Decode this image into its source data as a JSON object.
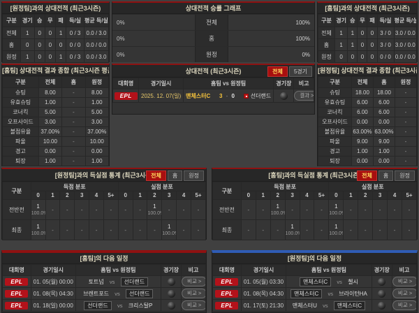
{
  "labels": {
    "vs": "vs"
  },
  "h2h_away": {
    "title": "[원정팀]과의 상대전적 (최근3시즌)",
    "headers": [
      "구분",
      "경기",
      "승",
      "무",
      "패",
      "득/실",
      "평균 득/실"
    ],
    "rows": [
      {
        "label": "전체",
        "g": "1",
        "w": "0",
        "d": "0",
        "l": "1",
        "gf": "0 / 3",
        "avg": "0.0 / 3.0"
      },
      {
        "label": "홈",
        "g": "0",
        "w": "0",
        "d": "0",
        "l": "0",
        "gf": "0 / 0",
        "avg": "0.0 / 0.0"
      },
      {
        "label": "원정",
        "g": "1",
        "w": "0",
        "d": "0",
        "l": "1",
        "gf": "0 / 3",
        "avg": "0.0 / 3.0"
      }
    ]
  },
  "winrate": {
    "title": "상대전적 승률 그래프",
    "rows": [
      {
        "label": "전체",
        "left": "0%",
        "right": "100%",
        "left_val": 0,
        "right_val": 100
      },
      {
        "label": "홈",
        "left": "0%",
        "right": "100%",
        "left_val": 0,
        "right_val": 100
      },
      {
        "label": "원정",
        "left": "0%",
        "right": "0%",
        "left_val": 0,
        "right_val": 0
      }
    ]
  },
  "h2h_home": {
    "title": "[홈팀]과의 상대전적 (최근3시즌)",
    "headers": [
      "구분",
      "경기",
      "승",
      "무",
      "패",
      "득/실",
      "평균 득/실"
    ],
    "rows": [
      {
        "label": "전체",
        "g": "1",
        "w": "1",
        "d": "0",
        "l": "0",
        "gf": "3 / 0",
        "avg": "3.0 / 0.0"
      },
      {
        "label": "홈",
        "g": "1",
        "w": "1",
        "d": "0",
        "l": "0",
        "gf": "3 / 0",
        "avg": "3.0 / 0.0"
      },
      {
        "label": "원정",
        "g": "0",
        "w": "0",
        "d": "0",
        "l": "0",
        "gf": "0 / 0",
        "avg": "0.0 / 0.0"
      }
    ]
  },
  "summary_home": {
    "title": "[홈팀] 상대전적 결과 종합 (최근3시즌 평균)",
    "headers": [
      "구분",
      "전체",
      "홈",
      "원정"
    ],
    "rows": [
      {
        "label": "슈팅",
        "all": "8.00",
        "home": "-",
        "away": "8.00"
      },
      {
        "label": "유효슈팅",
        "all": "1.00",
        "home": "-",
        "away": "1.00"
      },
      {
        "label": "코너킥",
        "all": "5.00",
        "home": "-",
        "away": "5.00"
      },
      {
        "label": "오프사이드",
        "all": "3.00",
        "home": "-",
        "away": "3.00"
      },
      {
        "label": "볼점유율",
        "all": "37.00%",
        "home": "-",
        "away": "37.00%"
      },
      {
        "label": "파울",
        "all": "10.00",
        "home": "-",
        "away": "10.00"
      },
      {
        "label": "경고",
        "all": "0.00",
        "home": "-",
        "away": "0.00"
      },
      {
        "label": "퇴장",
        "all": "1.00",
        "home": "-",
        "away": "1.00"
      }
    ]
  },
  "matches": {
    "title": "상대전적 (최근3시즌)",
    "btn_all": "전체",
    "btn_5": "5경기",
    "headers": [
      "대회명",
      "경기일시",
      "홈팀 vs 원정팀",
      "경기장",
      "비고"
    ],
    "row": {
      "league": "EPL",
      "date": "2025. 12. 07(일)",
      "home": "맨체스터C",
      "hs": "3",
      "as": "0",
      "away": "선더랜드",
      "action": "결과 >"
    }
  },
  "summary_away": {
    "title": "[원정팀] 상대전적 결과 종합 (최근3시즌 평균)",
    "headers": [
      "구분",
      "전체",
      "홈",
      "원정"
    ],
    "rows": [
      {
        "label": "슈팅",
        "all": "18.00",
        "home": "18.00",
        "away": "-"
      },
      {
        "label": "유효슈팅",
        "all": "6.00",
        "home": "6.00",
        "away": "-"
      },
      {
        "label": "코너킥",
        "all": "6.00",
        "home": "6.00",
        "away": "-"
      },
      {
        "label": "오프사이드",
        "all": "0.00",
        "home": "0.00",
        "away": "-"
      },
      {
        "label": "볼점유율",
        "all": "63.00%",
        "home": "63.00%",
        "away": "-"
      },
      {
        "label": "파울",
        "all": "9.00",
        "home": "9.00",
        "away": "-"
      },
      {
        "label": "경고",
        "all": "1.00",
        "home": "1.00",
        "away": "-"
      },
      {
        "label": "퇴장",
        "all": "0.00",
        "home": "0.00",
        "away": "-"
      }
    ]
  },
  "goals_away": {
    "title": "[원정팀]과의 득실점 통계 (최근3시즌)",
    "btn_all": "전체",
    "btn_home": "홈",
    "btn_away": "원정",
    "col_label": "구분",
    "scored_header": "득점 분포",
    "conceded_header": "실점 분포",
    "bins": [
      "0",
      "1",
      "2",
      "3",
      "4",
      "5+"
    ],
    "rows": [
      {
        "label": "전반전",
        "scored": [
          {
            "c": "1",
            "p": "100.0%"
          },
          "-",
          "-",
          "-",
          "-",
          "-"
        ],
        "conceded": [
          "-",
          "-",
          {
            "c": "1",
            "p": "100.0%"
          },
          "-",
          "-",
          "-"
        ]
      },
      {
        "label": "최종",
        "scored": [
          {
            "c": "1",
            "p": "100.0%"
          },
          "-",
          "-",
          "-",
          "-",
          "-"
        ],
        "conceded": [
          "-",
          "-",
          "-",
          {
            "c": "1",
            "p": "100.0%"
          },
          "-",
          "-"
        ]
      }
    ]
  },
  "goals_home": {
    "title": "[홈팀]과의 득실점 통계 (최근3시즌)",
    "btn_all": "전체",
    "btn_home": "홈",
    "btn_away": "원정",
    "col_label": "구분",
    "scored_header": "득점 분포",
    "conceded_header": "실점 분포",
    "bins": [
      "0",
      "1",
      "2",
      "3",
      "4",
      "5+"
    ],
    "rows": [
      {
        "label": "전반전",
        "scored": [
          "-",
          "-",
          {
            "c": "1",
            "p": "100.0%"
          },
          "-",
          "-",
          "-"
        ],
        "conceded": [
          {
            "c": "1",
            "p": "100.0%"
          },
          "-",
          "-",
          "-",
          "-",
          "-"
        ]
      },
      {
        "label": "최종",
        "scored": [
          "-",
          "-",
          "-",
          {
            "c": "1",
            "p": "100.0%"
          },
          "-",
          "-"
        ],
        "conceded": [
          {
            "c": "1",
            "p": "100.0%"
          },
          "-",
          "-",
          "-",
          "-",
          "-"
        ]
      }
    ]
  },
  "schedule_home": {
    "title": "[홈팀]의 다음 일정",
    "headers": [
      "대회명",
      "경기일시",
      "홈팀 vs 원정팀",
      "경기장",
      "비고"
    ],
    "rows": [
      {
        "league": "EPL",
        "date": "01. 05(월) 00:00",
        "home": "토트넘",
        "away": "선더랜드",
        "action": "비교 >"
      },
      {
        "league": "EPL",
        "date": "01. 08(목) 04:30",
        "home": "브렌트포드",
        "away": "선더랜드",
        "action": "비교 >"
      },
      {
        "league": "EPL",
        "date": "01. 18(일) 00:00",
        "home": "선더랜드",
        "away": "크리스탈P",
        "action": "비교 >"
      }
    ]
  },
  "schedule_away": {
    "title": "[원정팀]의 다음 일정",
    "headers": [
      "대회명",
      "경기일시",
      "홈팀 vs 원정팀",
      "경기장",
      "비고"
    ],
    "rows": [
      {
        "league": "EPL",
        "date": "01. 05(월) 03:30",
        "home": "맨체스터C",
        "away": "첼시",
        "action": "비교 >"
      },
      {
        "league": "EPL",
        "date": "01. 08(목) 04:30",
        "home": "맨체스터C",
        "away": "브라이턴HA",
        "action": "비교 >"
      },
      {
        "league": "EPL",
        "date": "01. 17(토) 21:30",
        "home": "맨체스터U",
        "away": "맨체스터C",
        "action": "비교 >"
      }
    ]
  }
}
